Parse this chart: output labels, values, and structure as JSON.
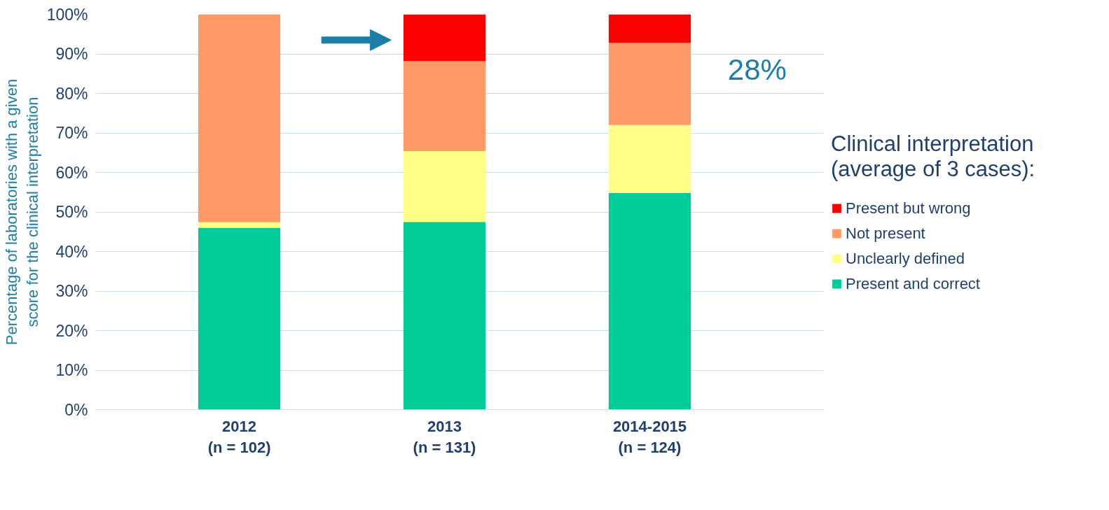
{
  "chart_data": {
    "type": "bar",
    "stacked": true,
    "ylabel": "Percentage of laboratories with a given\nscore for the clinical interpretation",
    "legend_title": "Clinical interpretation\n(average of 3 cases):",
    "categories": [
      "2012\n(n = 102)",
      "2013\n(n = 131)",
      "2014-2015\n(n = 124)"
    ],
    "series": [
      {
        "name": "Present and correct",
        "color": "#00cc99",
        "values": [
          46,
          47.5,
          54.8
        ]
      },
      {
        "name": "Unclearly defined",
        "color": "#ffff88",
        "values": [
          1.4,
          17.9,
          17.2
        ]
      },
      {
        "name": "Not present",
        "color": "#ff9966",
        "values": [
          52.6,
          22.8,
          20.8
        ]
      },
      {
        "name": "Present but wrong",
        "color": "#ff0000",
        "values": [
          0,
          11.8,
          7.2
        ]
      }
    ],
    "ylim": [
      0,
      100
    ],
    "yticks": [
      {
        "value": 0,
        "label": "0%"
      },
      {
        "value": 10,
        "label": "10%"
      },
      {
        "value": 20,
        "label": "20%"
      },
      {
        "value": 30,
        "label": "30%"
      },
      {
        "value": 40,
        "label": "40%"
      },
      {
        "value": 50,
        "label": "50%"
      },
      {
        "value": 60,
        "label": "60%"
      },
      {
        "value": 70,
        "label": "70%"
      },
      {
        "value": 80,
        "label": "80%"
      },
      {
        "value": 90,
        "label": "90%"
      },
      {
        "value": 100,
        "label": "100%"
      }
    ],
    "grid": "y",
    "legend": "right",
    "annotations": [
      "28%"
    ]
  }
}
